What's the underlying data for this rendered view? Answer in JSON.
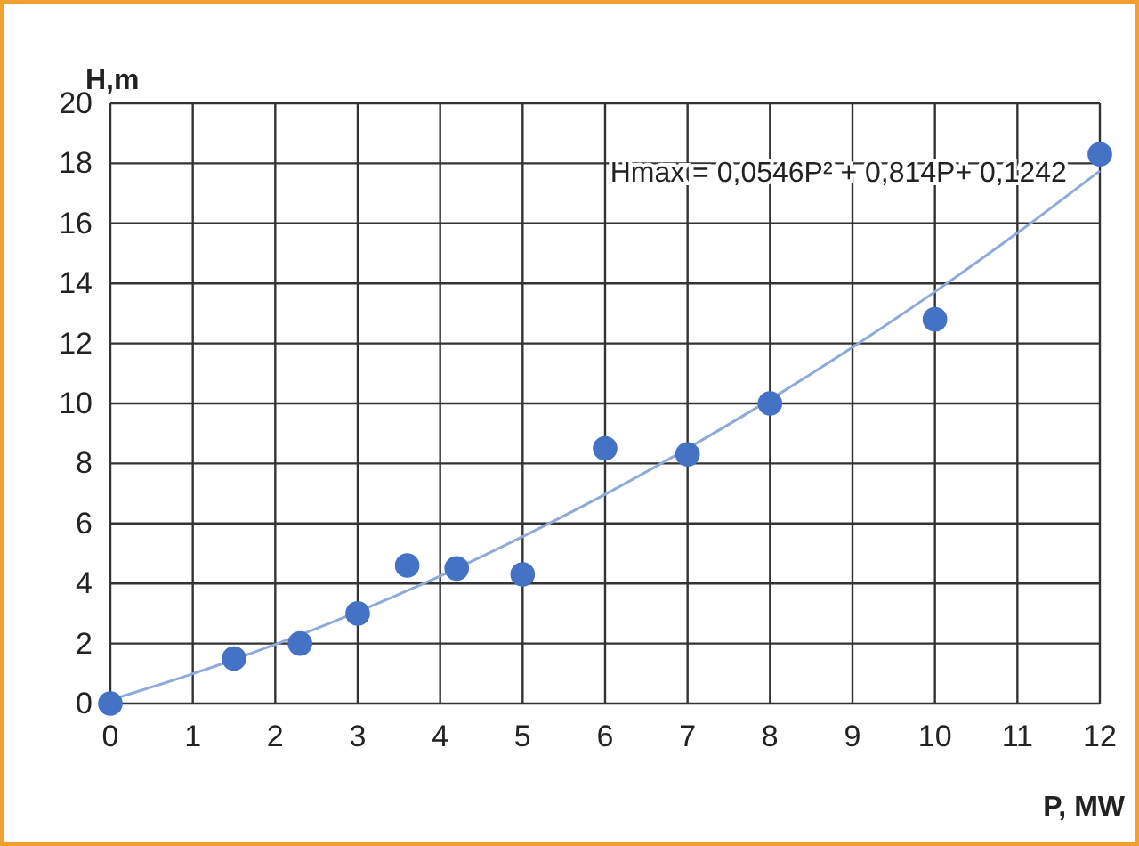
{
  "chart_data": {
    "type": "scatter",
    "xlabel": "P, MW",
    "ylabel": "H,m",
    "annotations": [
      "Hmax = 0,0546P² + 0,814P+ 0,1242"
    ],
    "xlim": [
      0,
      12
    ],
    "xticks": [
      0,
      1,
      2,
      3,
      4,
      5,
      6,
      7,
      8,
      9,
      10,
      11,
      12
    ],
    "ylim": [
      0,
      20
    ],
    "yticks": [
      0,
      2,
      4,
      6,
      8,
      10,
      12,
      14,
      16,
      18,
      20
    ],
    "grid": true,
    "marker": "circle",
    "series": [
      {
        "color": "#4472c4",
        "x": [
          0,
          1.5,
          2.3,
          3,
          3.6,
          4.2,
          5,
          6,
          7,
          8,
          10,
          12
        ],
        "values": [
          0,
          1.5,
          2.0,
          3.0,
          4.6,
          4.5,
          4.3,
          8.5,
          8.3,
          10.0,
          12.8,
          18.3
        ]
      },
      {
        "type": "line",
        "color": "#8eaadb",
        "marker": "none",
        "x": [
          0,
          1,
          2,
          3.5,
          4,
          5,
          6,
          7,
          8,
          9,
          10,
          11,
          12
        ],
        "values": [
          0.12,
          0.99,
          1.97,
          3.64,
          4.25,
          5.56,
          6.97,
          8.5,
          10.13,
          11.87,
          13.72,
          15.68,
          17.75
        ]
      }
    ]
  }
}
